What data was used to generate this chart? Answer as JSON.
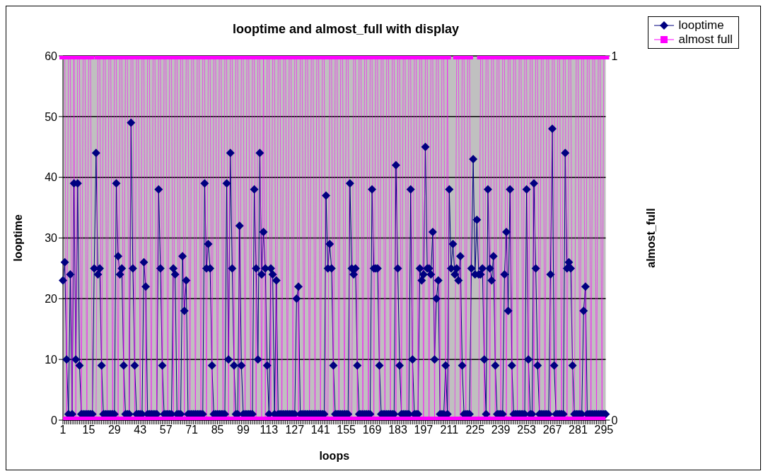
{
  "chart_data": {
    "type": "line",
    "title": "looptime and almost_full with display",
    "xlabel": "loops",
    "ylabel": "looptime",
    "y2label": "almost_full",
    "categories": [
      "1",
      null,
      null,
      null,
      null,
      null,
      null,
      null,
      null,
      null,
      null,
      null,
      null,
      null,
      "15",
      null,
      null,
      null,
      null,
      null,
      null,
      null,
      null,
      null,
      null,
      null,
      null,
      null,
      "29",
      null,
      null,
      null,
      null,
      null,
      null,
      null,
      null,
      null,
      null,
      null,
      null,
      null,
      "43",
      null,
      null,
      null,
      null,
      null,
      null,
      null,
      null,
      null,
      null,
      null,
      null,
      null,
      "57",
      null,
      null,
      null,
      null,
      null,
      null,
      null,
      null,
      null,
      null,
      null,
      null,
      null,
      "71",
      null,
      null,
      null,
      null,
      null,
      null,
      null,
      null,
      null,
      null,
      null,
      null,
      null,
      "85",
      null,
      null,
      null,
      null,
      null,
      null,
      null,
      null,
      null,
      null,
      null,
      null,
      null,
      "99",
      null,
      null,
      null,
      null,
      null,
      null,
      null,
      null,
      null,
      null,
      null,
      null,
      null,
      "113",
      null,
      null,
      null,
      null,
      null,
      null,
      null,
      null,
      null,
      null,
      null,
      null,
      null,
      "127",
      null,
      null,
      null,
      null,
      null,
      null,
      null,
      null,
      null,
      null,
      null,
      null,
      null,
      "141",
      null,
      null,
      null,
      null,
      null,
      null,
      null,
      null,
      null,
      null,
      null,
      null,
      null,
      "155",
      null,
      null,
      null,
      null,
      null,
      null,
      null,
      null,
      null,
      null,
      null,
      null,
      null,
      "169",
      null,
      null,
      null,
      null,
      null,
      null,
      null,
      null,
      null,
      null,
      null,
      null,
      null,
      "183",
      null,
      null,
      null,
      null,
      null,
      null,
      null,
      null,
      null,
      null,
      null,
      null,
      null,
      "197",
      null,
      null,
      null,
      null,
      null,
      null,
      null,
      null,
      null,
      null,
      null,
      null,
      null,
      "211",
      null,
      null,
      null,
      null,
      null,
      null,
      null,
      null,
      null,
      null,
      null,
      null,
      null,
      "225",
      null,
      null,
      null,
      null,
      null,
      null,
      null,
      null,
      null,
      null,
      null,
      null,
      null,
      "239",
      null,
      null,
      null,
      null,
      null,
      null,
      null,
      null,
      null,
      null,
      null,
      null,
      null,
      "253",
      null,
      null,
      null,
      null,
      null,
      null,
      null,
      null,
      null,
      null,
      null,
      null,
      null,
      "267",
      null,
      null,
      null,
      null,
      null,
      null,
      null,
      null,
      null,
      null,
      null,
      null,
      null,
      "281",
      null,
      null,
      null,
      null,
      null,
      null,
      null,
      null,
      null,
      null,
      null,
      null,
      null,
      "295",
      null
    ],
    "series": [
      {
        "name": "looptime",
        "color": "#000080",
        "marker": "diamond",
        "values": [
          23,
          26,
          10,
          1,
          24,
          1,
          39,
          10,
          39,
          9,
          1,
          1,
          1,
          1,
          1,
          1,
          1,
          25,
          44,
          24,
          25,
          9,
          1,
          1,
          1,
          1,
          1,
          1,
          1,
          39,
          27,
          24,
          25,
          9,
          1,
          1,
          1,
          49,
          25,
          9,
          1,
          1,
          1,
          1,
          26,
          22,
          1,
          1,
          1,
          1,
          1,
          1,
          38,
          25,
          9,
          1,
          1,
          1,
          1,
          1,
          25,
          24,
          1,
          1,
          1,
          27,
          18,
          23,
          1,
          1,
          1,
          1,
          1,
          1,
          1,
          1,
          1,
          39,
          25,
          29,
          25,
          9,
          1,
          1,
          1,
          1,
          1,
          1,
          1,
          39,
          10,
          44,
          25,
          9,
          1,
          1,
          32,
          9,
          1,
          1,
          1,
          1,
          1,
          1,
          38,
          25,
          10,
          44,
          24,
          31,
          25,
          9,
          1,
          25,
          24,
          1,
          23,
          1,
          1,
          1,
          1,
          1,
          1,
          1,
          1,
          1,
          1,
          20,
          22,
          1,
          1,
          1,
          1,
          1,
          1,
          1,
          1,
          1,
          1,
          1,
          1,
          1,
          1,
          37,
          25,
          29,
          25,
          9,
          1,
          1,
          1,
          1,
          1,
          1,
          1,
          1,
          39,
          25,
          24,
          25,
          9,
          1,
          1,
          1,
          1,
          1,
          1,
          1,
          38,
          25,
          25,
          25,
          9,
          1,
          1,
          1,
          1,
          1,
          1,
          1,
          1,
          42,
          25,
          9,
          1,
          1,
          1,
          1,
          1,
          38,
          10,
          1,
          1,
          1,
          25,
          23,
          24,
          45,
          25,
          25,
          24,
          31,
          10,
          20,
          23,
          1,
          1,
          1,
          9,
          1,
          38,
          25,
          29,
          24,
          25,
          23,
          27,
          9,
          1,
          1,
          1,
          1,
          25,
          43,
          24,
          33,
          24,
          24,
          25,
          10,
          1,
          38,
          25,
          23,
          27,
          9,
          1,
          1,
          1,
          1,
          24,
          31,
          18,
          38,
          9,
          1,
          1,
          1,
          1,
          1,
          1,
          1,
          38,
          10,
          1,
          1,
          39,
          25,
          9,
          1,
          1,
          1,
          1,
          1,
          1,
          24,
          48,
          9,
          1,
          1,
          1,
          1,
          1,
          44,
          25,
          26,
          25,
          9,
          1,
          1,
          1,
          1,
          1,
          18,
          22,
          1,
          1,
          1,
          1,
          1,
          1,
          1,
          1,
          1,
          1,
          1
        ]
      },
      {
        "name": "almost full",
        "color": "#ff00ff",
        "marker": "square",
        "axis": "y2",
        "values": [
          1,
          1,
          0,
          1,
          1,
          0,
          1,
          0,
          1,
          1,
          0,
          1,
          1,
          0,
          1,
          1,
          0,
          0,
          0,
          1,
          1,
          0,
          1,
          1,
          0,
          1,
          1,
          0,
          1,
          1,
          0,
          1,
          1,
          0,
          1,
          1,
          0,
          1,
          1,
          0,
          1,
          1,
          0,
          1,
          1,
          0,
          1,
          1,
          0,
          1,
          1,
          0,
          1,
          1,
          0,
          1,
          1,
          0,
          1,
          1,
          0,
          1,
          1,
          0,
          1,
          1,
          0,
          1,
          1,
          0,
          1,
          1,
          0,
          1,
          1,
          0,
          1,
          1,
          0,
          1,
          1,
          0,
          1,
          1,
          0,
          1,
          1,
          0,
          1,
          1,
          0,
          1,
          1,
          0,
          1,
          1,
          0,
          1,
          1,
          0,
          1,
          1,
          0,
          1,
          1,
          0,
          1,
          1,
          0,
          1,
          0,
          1,
          1,
          0,
          1,
          1,
          0,
          1,
          1,
          0,
          1,
          1,
          0,
          1,
          1,
          0,
          1,
          1,
          0,
          1,
          1,
          0,
          1,
          1,
          0,
          1,
          1,
          0,
          1,
          1,
          0,
          1,
          1,
          0,
          0,
          1,
          1,
          0,
          1,
          1,
          0,
          1,
          1,
          0,
          1,
          1,
          0,
          0,
          1,
          1,
          0,
          1,
          1,
          0,
          1,
          1,
          0,
          1,
          1,
          0,
          1,
          1,
          0,
          1,
          1,
          0,
          1,
          1,
          0,
          1,
          1,
          0,
          1,
          1,
          0,
          1,
          1,
          0,
          1,
          1,
          0,
          1,
          1,
          0,
          1,
          1,
          0,
          1,
          1,
          0,
          1,
          1,
          0,
          1,
          1,
          0,
          1,
          1,
          0,
          1,
          0,
          0,
          0,
          0,
          1,
          1,
          0,
          1,
          1,
          0,
          1,
          1,
          0,
          0,
          0,
          0,
          0,
          1,
          1,
          0,
          1,
          1,
          0,
          1,
          1,
          0,
          1,
          1,
          0,
          1,
          1,
          0,
          1,
          1,
          0,
          1,
          1,
          0,
          1,
          1,
          0,
          1,
          1,
          0,
          1,
          1,
          0,
          1,
          1,
          0,
          1,
          1,
          0,
          1,
          1,
          0,
          1,
          1,
          0,
          1,
          1,
          0,
          1,
          1,
          0,
          1,
          1,
          0,
          0,
          1,
          1,
          0,
          1,
          1,
          0,
          1,
          1,
          0,
          1,
          1,
          0,
          1,
          1,
          0,
          1,
          1
        ]
      }
    ],
    "ylim": [
      0,
      60
    ],
    "yticks": [
      0,
      10,
      20,
      30,
      40,
      50,
      60
    ],
    "y2lim": [
      0,
      1
    ],
    "y2ticks": [
      0,
      1
    ],
    "grid": "y",
    "legend": "top right"
  }
}
